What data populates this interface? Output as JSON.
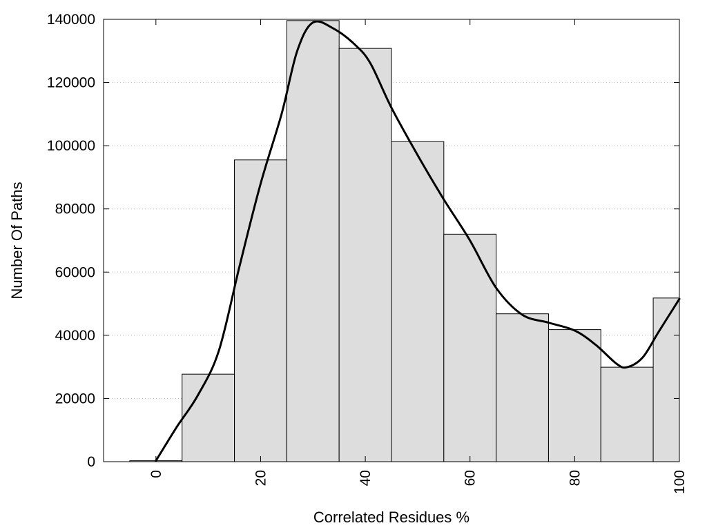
{
  "chart_data": {
    "type": "bar",
    "xlabel": "Correlated Residues %",
    "ylabel": "Number Of Paths",
    "xlim": [
      -10,
      100
    ],
    "ylim": [
      0,
      140000
    ],
    "x_ticks": [
      0,
      20,
      40,
      60,
      80,
      100
    ],
    "y_ticks": [
      0,
      20000,
      40000,
      60000,
      80000,
      100000,
      120000,
      140000
    ],
    "grid": "horizontal-dotted",
    "bar_color": "#dddddd",
    "bar_width": 10,
    "bars": [
      {
        "x": 0,
        "value": 300
      },
      {
        "x": 10,
        "value": 27700
      },
      {
        "x": 20,
        "value": 95500
      },
      {
        "x": 30,
        "value": 139600
      },
      {
        "x": 40,
        "value": 130800
      },
      {
        "x": 50,
        "value": 101300
      },
      {
        "x": 60,
        "value": 72000
      },
      {
        "x": 70,
        "value": 46800
      },
      {
        "x": 80,
        "value": 41800
      },
      {
        "x": 90,
        "value": 29900
      },
      {
        "x": 100,
        "value": 51800
      }
    ],
    "curve": {
      "type": "line",
      "color": "#000000",
      "points": [
        [
          0,
          300
        ],
        [
          4,
          11000
        ],
        [
          8,
          21000
        ],
        [
          12,
          35000
        ],
        [
          16,
          62000
        ],
        [
          20,
          88000
        ],
        [
          24,
          110000
        ],
        [
          27,
          130000
        ],
        [
          30,
          139000
        ],
        [
          34,
          137000
        ],
        [
          38,
          132000
        ],
        [
          41,
          126000
        ],
        [
          45,
          112000
        ],
        [
          50,
          97000
        ],
        [
          55,
          83000
        ],
        [
          60,
          70000
        ],
        [
          65,
          55000
        ],
        [
          70,
          46500
        ],
        [
          75,
          44000
        ],
        [
          80,
          41500
        ],
        [
          84,
          37000
        ],
        [
          88,
          31000
        ],
        [
          90,
          29900
        ],
        [
          93,
          33000
        ],
        [
          96,
          41000
        ],
        [
          100,
          51500
        ]
      ]
    }
  }
}
